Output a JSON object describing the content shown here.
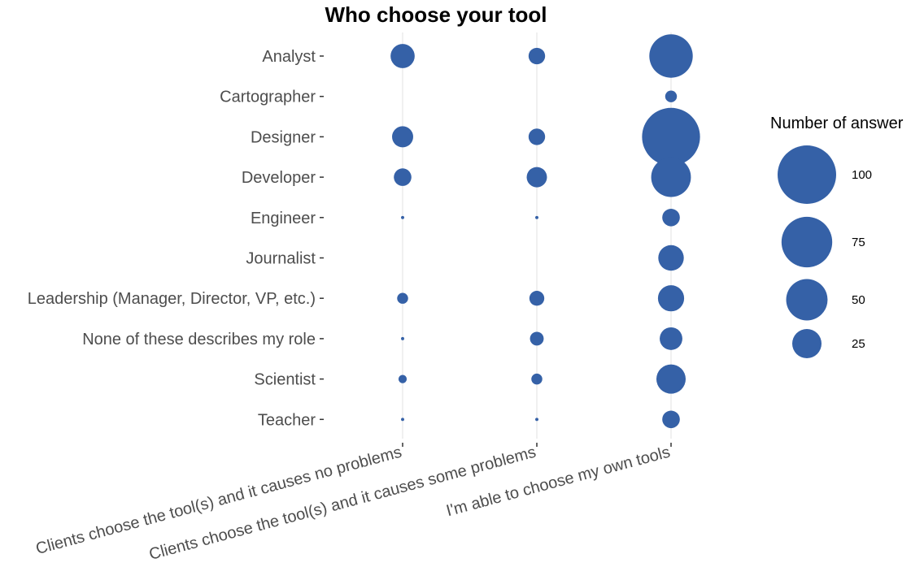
{
  "chart_data": {
    "type": "scatter",
    "title": "Who choose your tool",
    "x_categories": [
      "Clients choose the tool(s) and it causes no problems",
      "Clients choose the tool(s) and it causes some problems",
      "I'm able to choose my own tools"
    ],
    "y_categories": [
      "Analyst",
      "Cartographer",
      "Designer",
      "Developer",
      "Engineer",
      "Journalist",
      "Leadership (Manager, Director, VP, etc.)",
      "None of these describes my role",
      "Scientist",
      "Teacher"
    ],
    "points": [
      {
        "x": "Clients choose the tool(s) and it causes no problems",
        "y": "Analyst",
        "size": 17
      },
      {
        "x": "Clients choose the tool(s) and it causes some problems",
        "y": "Analyst",
        "size": 8
      },
      {
        "x": "I'm able to choose my own tools",
        "y": "Analyst",
        "size": 55
      },
      {
        "x": "I'm able to choose my own tools",
        "y": "Cartographer",
        "size": 4
      },
      {
        "x": "Clients choose the tool(s) and it causes no problems",
        "y": "Designer",
        "size": 13
      },
      {
        "x": "Clients choose the tool(s) and it causes some problems",
        "y": "Designer",
        "size": 8
      },
      {
        "x": "I'm able to choose my own tools",
        "y": "Designer",
        "size": 98
      },
      {
        "x": "Clients choose the tool(s) and it causes no problems",
        "y": "Developer",
        "size": 9
      },
      {
        "x": "Clients choose the tool(s) and it causes some problems",
        "y": "Developer",
        "size": 12
      },
      {
        "x": "I'm able to choose my own tools",
        "y": "Developer",
        "size": 46
      },
      {
        "x": "Clients choose the tool(s) and it causes no problems",
        "y": "Engineer",
        "size": 0.3
      },
      {
        "x": "Clients choose the tool(s) and it causes some problems",
        "y": "Engineer",
        "size": 0.3
      },
      {
        "x": "I'm able to choose my own tools",
        "y": "Engineer",
        "size": 9
      },
      {
        "x": "I'm able to choose my own tools",
        "y": "Journalist",
        "size": 19
      },
      {
        "x": "Clients choose the tool(s) and it causes no problems",
        "y": "Leadership (Manager, Director, VP, etc.)",
        "size": 3.5
      },
      {
        "x": "Clients choose the tool(s) and it causes some problems",
        "y": "Leadership (Manager, Director, VP, etc.)",
        "size": 6.5
      },
      {
        "x": "I'm able to choose my own tools",
        "y": "Leadership (Manager, Director, VP, etc.)",
        "size": 20
      },
      {
        "x": "Clients choose the tool(s) and it causes no problems",
        "y": "None of these describes my role",
        "size": 0.3
      },
      {
        "x": "Clients choose the tool(s) and it causes some problems",
        "y": "None of these describes my role",
        "size": 5.5
      },
      {
        "x": "I'm able to choose my own tools",
        "y": "None of these describes my role",
        "size": 15
      },
      {
        "x": "Clients choose the tool(s) and it causes no problems",
        "y": "Scientist",
        "size": 2
      },
      {
        "x": "Clients choose the tool(s) and it causes some problems",
        "y": "Scientist",
        "size": 3.5
      },
      {
        "x": "I'm able to choose my own tools",
        "y": "Scientist",
        "size": 25
      },
      {
        "x": "Clients choose the tool(s) and it causes no problems",
        "y": "Teacher",
        "size": 0.3
      },
      {
        "x": "Clients choose the tool(s) and it causes some problems",
        "y": "Teacher",
        "size": 0.3
      },
      {
        "x": "I'm able to choose my own tools",
        "y": "Teacher",
        "size": 9
      }
    ],
    "legend": {
      "title": "Number of answer",
      "entries": [
        {
          "label": "100",
          "value": 100
        },
        {
          "label": "75",
          "value": 75
        },
        {
          "label": "50",
          "value": 50
        },
        {
          "label": "25",
          "value": 25
        }
      ],
      "placement": "right"
    },
    "grid": true,
    "point_color": "#3561a7"
  }
}
